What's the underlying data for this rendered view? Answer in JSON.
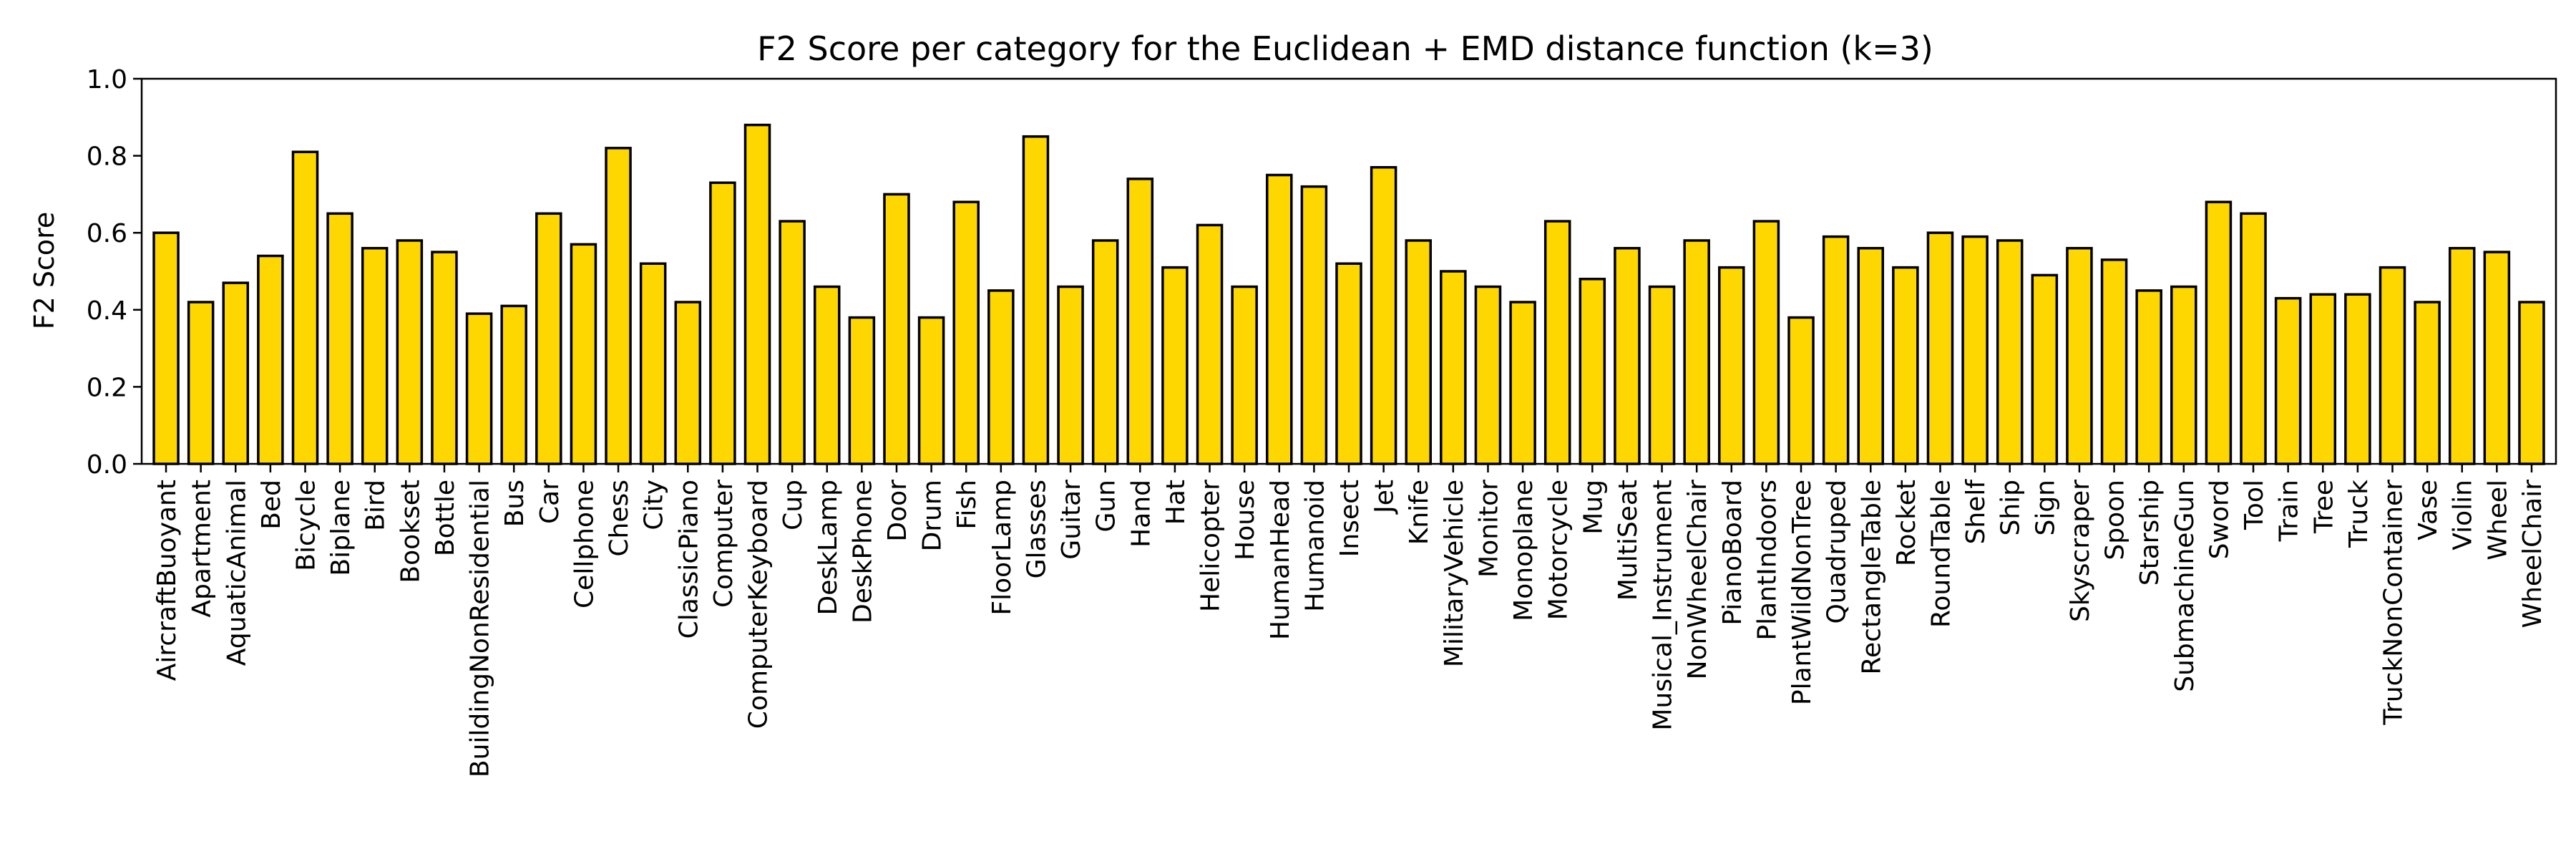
{
  "chart_data": {
    "type": "bar",
    "title": "F2 Score per category for the Euclidean + EMD distance function (k=3)",
    "xlabel": "",
    "ylabel": "F2 Score",
    "ylim": [
      0,
      1.0
    ],
    "yticks": [
      "0.0",
      "0.2",
      "0.4",
      "0.6",
      "0.8",
      "1.0"
    ],
    "grid": false,
    "bar_color": "#FFD700",
    "edge_color": "#000000",
    "categories": [
      "AircraftBuoyant",
      "Apartment",
      "AquaticAnimal",
      "Bed",
      "Bicycle",
      "Biplane",
      "Bird",
      "Bookset",
      "Bottle",
      "BuildingNonResidential",
      "Bus",
      "Car",
      "Cellphone",
      "Chess",
      "City",
      "ClassicPiano",
      "Computer",
      "ComputerKeyboard",
      "Cup",
      "DeskLamp",
      "DeskPhone",
      "Door",
      "Drum",
      "Fish",
      "FloorLamp",
      "Glasses",
      "Guitar",
      "Gun",
      "Hand",
      "Hat",
      "Helicopter",
      "House",
      "HumanHead",
      "Humanoid",
      "Insect",
      "Jet",
      "Knife",
      "MilitaryVehicle",
      "Monitor",
      "Monoplane",
      "Motorcycle",
      "Mug",
      "MultiSeat",
      "Musical_Instrument",
      "NonWheelChair",
      "PianoBoard",
      "PlantIndoors",
      "PlantWildNonTree",
      "Quadruped",
      "RectangleTable",
      "Rocket",
      "RoundTable",
      "Shelf",
      "Ship",
      "Sign",
      "Skyscraper",
      "Spoon",
      "Starship",
      "SubmachineGun",
      "Sword",
      "Tool",
      "Train",
      "Tree",
      "Truck",
      "TruckNonContainer",
      "Vase",
      "Violin",
      "Wheel",
      "WheelChair"
    ],
    "values": [
      0.6,
      0.42,
      0.47,
      0.54,
      0.81,
      0.65,
      0.56,
      0.58,
      0.55,
      0.39,
      0.41,
      0.65,
      0.57,
      0.82,
      0.52,
      0.42,
      0.73,
      0.88,
      0.63,
      0.46,
      0.38,
      0.7,
      0.38,
      0.68,
      0.45,
      0.85,
      0.46,
      0.58,
      0.74,
      0.51,
      0.62,
      0.46,
      0.75,
      0.72,
      0.52,
      0.77,
      0.58,
      0.5,
      0.46,
      0.42,
      0.63,
      0.48,
      0.56,
      0.46,
      0.58,
      0.51,
      0.63,
      0.38,
      0.59,
      0.56,
      0.51,
      0.6,
      0.59,
      0.58,
      0.49,
      0.56,
      0.53,
      0.45,
      0.46,
      0.68,
      0.65,
      0.43,
      0.44,
      0.44,
      0.51,
      0.42,
      0.56,
      0.55,
      0.42
    ]
  }
}
